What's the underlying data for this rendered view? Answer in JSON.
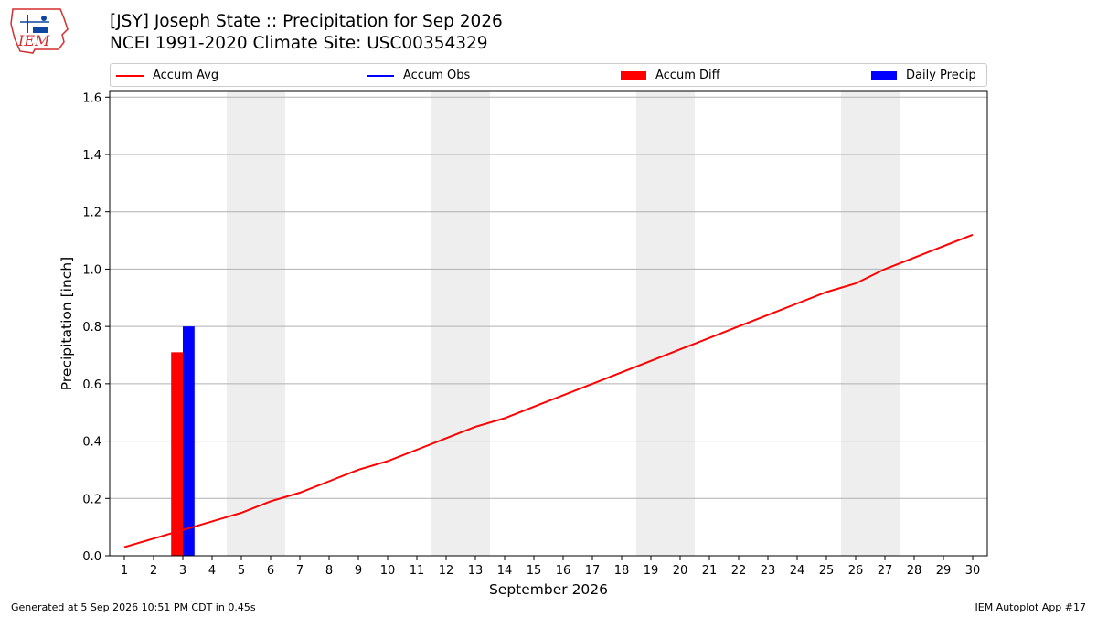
{
  "title_line1": "[JSY] Joseph State :: Precipitation for Sep 2026",
  "title_line2": "NCEI 1991-2020 Climate Site: USC00354329",
  "logo_text": "IEM",
  "legend": {
    "accum_avg": "Accum Avg",
    "accum_obs": "Accum Obs",
    "accum_diff": "Accum Diff",
    "daily_precip": "Daily Precip"
  },
  "colors": {
    "accum_avg": "#ff0000",
    "accum_obs": "#0000ff",
    "accum_diff": "#ff0000",
    "daily_precip": "#0000ff",
    "weekend_band": "#eeeeee",
    "grid": "#b0b0b0"
  },
  "footer": {
    "generated": "Generated at 5 Sep 2026 10:51 PM CDT in 0.45s",
    "app": "IEM Autoplot App #17"
  },
  "chart_data": {
    "type": "line",
    "title": "[JSY] Joseph State :: Precipitation for Sep 2026",
    "subtitle": "NCEI 1991-2020 Climate Site: USC00354329",
    "xlabel": "September 2026",
    "ylabel": "Precipitation [inch]",
    "xlim": [
      0.5,
      30.5
    ],
    "ylim": [
      0,
      1.62
    ],
    "grid": true,
    "legend_position": "top",
    "x": [
      1,
      2,
      3,
      4,
      5,
      6,
      7,
      8,
      9,
      10,
      11,
      12,
      13,
      14,
      15,
      16,
      17,
      18,
      19,
      20,
      21,
      22,
      23,
      24,
      25,
      26,
      27,
      28,
      29,
      30
    ],
    "yticks": [
      0.0,
      0.2,
      0.4,
      0.6,
      0.8,
      1.0,
      1.2,
      1.4,
      1.6
    ],
    "weekend_bands": [
      [
        4.5,
        6.5
      ],
      [
        11.5,
        13.5
      ],
      [
        18.5,
        20.5
      ],
      [
        25.5,
        27.5
      ]
    ],
    "series": [
      {
        "name": "Accum Avg",
        "kind": "line",
        "values": [
          0.03,
          0.06,
          0.09,
          0.12,
          0.15,
          0.19,
          0.22,
          0.26,
          0.3,
          0.33,
          0.37,
          0.41,
          0.45,
          0.48,
          0.52,
          0.56,
          0.6,
          0.64,
          0.68,
          0.72,
          0.76,
          0.8,
          0.84,
          0.88,
          0.92,
          0.95,
          1.0,
          1.04,
          1.08,
          1.12
        ]
      },
      {
        "name": "Accum Diff",
        "kind": "bar",
        "x": [
          3
        ],
        "values": [
          0.71
        ]
      },
      {
        "name": "Daily Precip",
        "kind": "bar",
        "x": [
          3
        ],
        "values": [
          0.8
        ]
      }
    ]
  }
}
